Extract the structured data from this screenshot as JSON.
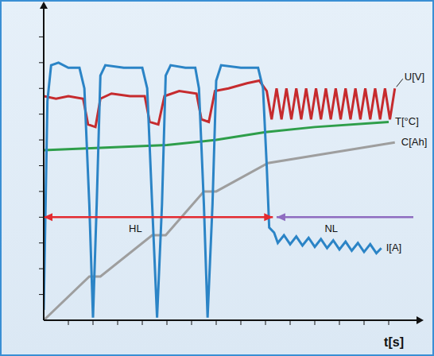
{
  "chart_data": {
    "type": "line",
    "x_label": "t[s]",
    "tick_labels": false,
    "grid": false,
    "xlim": [
      0,
      30
    ],
    "xticks": [
      2,
      4,
      6,
      8,
      10,
      12,
      14,
      16,
      18,
      20,
      22,
      24,
      26,
      28
    ],
    "ylim": [
      0,
      12
    ],
    "yticks": [
      1,
      2,
      3,
      4,
      5,
      6,
      7,
      8,
      9,
      10,
      11
    ],
    "series": [
      {
        "name": "U[V]",
        "color": "#c62b2e",
        "x": [
          0,
          1,
          2,
          3.2,
          3.6,
          4.2,
          4.6,
          5.5,
          7,
          8.2,
          8.6,
          9.3,
          9.8,
          11,
          12.4,
          12.8,
          13.4,
          13.9,
          15,
          16.5,
          17.5,
          18.1,
          18.5,
          18.9,
          19.3,
          19.7,
          20.1,
          20.5,
          20.9,
          21.3,
          21.7,
          22.1,
          22.5,
          22.9,
          23.3,
          23.7,
          24.1,
          24.5,
          24.9,
          25.3,
          25.7,
          26.1,
          26.5,
          26.9,
          27.3,
          27.7,
          28.1,
          28.5
        ],
        "values": [
          8.7,
          8.6,
          8.7,
          8.6,
          7.6,
          7.5,
          8.6,
          8.8,
          8.7,
          8.7,
          7.7,
          7.6,
          8.7,
          8.9,
          8.8,
          7.8,
          7.7,
          8.9,
          9.0,
          9.2,
          9.3,
          8.9,
          7.8,
          9.0,
          7.8,
          9.0,
          7.8,
          9.0,
          7.8,
          9.0,
          7.8,
          9.0,
          7.8,
          9.0,
          7.8,
          9.0,
          7.8,
          9.0,
          7.8,
          9.0,
          7.8,
          9.0,
          7.8,
          9.0,
          7.8,
          9.0,
          7.8,
          9.0
        ]
      },
      {
        "name": "C[Ah]",
        "color": "#9e9e9e",
        "x": [
          0,
          3.7,
          4.6,
          8.8,
          9.9,
          13.0,
          14.0,
          18.2,
          28.5
        ],
        "values": [
          0,
          1.7,
          1.7,
          3.3,
          3.3,
          5.0,
          5.0,
          6.1,
          6.9
        ]
      },
      {
        "name": "T[°C]",
        "color": "#2e9e4a",
        "x": [
          0,
          5,
          10,
          14,
          18,
          22,
          28
        ],
        "values": [
          6.6,
          6.7,
          6.8,
          7.0,
          7.3,
          7.5,
          7.7
        ]
      },
      {
        "name": "I[A]",
        "color": "#2b84c6",
        "x": [
          0,
          0.3,
          0.6,
          1.2,
          2.0,
          2.9,
          3.3,
          3.7,
          4.0,
          4.3,
          4.6,
          5.0,
          6.5,
          8.0,
          8.4,
          8.8,
          9.2,
          9.6,
          9.9,
          10.3,
          11.5,
          12.3,
          12.6,
          13.0,
          13.3,
          13.7,
          14.0,
          14.4,
          16.0,
          17.4,
          17.8,
          18.1,
          18.3,
          18.7,
          19.0,
          19.5,
          20.0,
          20.5,
          21.0,
          21.5,
          22.0,
          22.5,
          23.0,
          23.5,
          24.0,
          24.5,
          25.0,
          25.5,
          26.0,
          26.5,
          27.0,
          27.4
        ],
        "values": [
          0.4,
          8.5,
          9.9,
          10.0,
          9.8,
          9.8,
          9.0,
          4.5,
          0.1,
          4.5,
          9.5,
          9.9,
          9.8,
          9.8,
          9.0,
          4.5,
          0.1,
          4.5,
          9.5,
          9.9,
          9.8,
          9.8,
          9.0,
          4.5,
          0.1,
          4.5,
          9.3,
          9.9,
          9.8,
          9.8,
          9.0,
          6.0,
          3.6,
          3.4,
          3.0,
          3.3,
          2.95,
          3.25,
          2.9,
          3.2,
          2.85,
          3.15,
          2.8,
          3.1,
          2.75,
          3.05,
          2.7,
          3.0,
          2.65,
          2.95,
          2.6,
          2.8
        ]
      }
    ],
    "annotations": [
      {
        "text": "HL",
        "color": "#e32a2f",
        "x": [
          0,
          18.6
        ],
        "y": 4.0
      },
      {
        "text": "NL",
        "color": "#8e6cc0",
        "x": [
          18.9,
          30
        ],
        "y": 4.0
      }
    ]
  }
}
